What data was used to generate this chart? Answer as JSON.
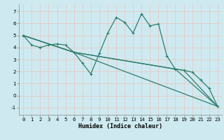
{
  "xlabel": "Humidex (Indice chaleur)",
  "ylabel": "",
  "bg_color": "#ceeaf0",
  "grid_color": "#e8c8c8",
  "line_color": "#2e7d6e",
  "xlim": [
    -0.5,
    23.5
  ],
  "ylim": [
    -1.6,
    7.6
  ],
  "xticks": [
    0,
    1,
    2,
    3,
    4,
    5,
    6,
    7,
    8,
    9,
    10,
    11,
    12,
    13,
    14,
    15,
    16,
    17,
    18,
    19,
    20,
    21,
    22,
    23
  ],
  "yticks": [
    -1,
    0,
    1,
    2,
    3,
    4,
    5,
    6,
    7
  ],
  "line1_x": [
    0,
    1,
    2,
    3,
    4,
    5,
    6,
    7,
    8,
    9,
    10,
    11,
    12,
    13,
    14,
    15,
    16,
    17,
    18,
    19,
    20,
    21,
    22,
    23
  ],
  "line1_y": [
    5.0,
    4.2,
    4.0,
    4.2,
    4.3,
    4.2,
    3.6,
    2.7,
    1.8,
    3.5,
    5.2,
    6.5,
    6.1,
    5.2,
    6.8,
    5.8,
    5.95,
    3.3,
    2.2,
    2.1,
    1.95,
    1.3,
    0.6,
    -0.9
  ],
  "line2_x": [
    0,
    6,
    23
  ],
  "line2_y": [
    5.0,
    3.6,
    -0.9
  ],
  "line3_x": [
    0,
    6,
    18,
    23
  ],
  "line3_y": [
    5.0,
    3.6,
    2.2,
    -0.9
  ],
  "line4_x": [
    0,
    6,
    19,
    23
  ],
  "line4_y": [
    5.0,
    3.6,
    2.1,
    -0.9
  ],
  "xlabel_fontsize": 6.0,
  "tick_fontsize": 5.2
}
